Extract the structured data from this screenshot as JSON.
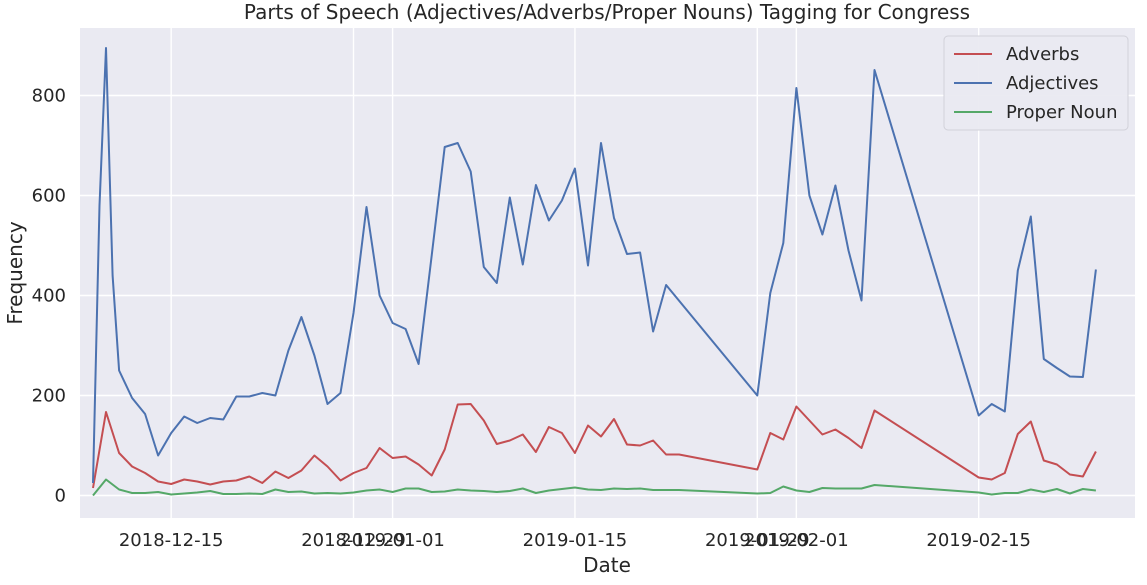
{
  "chart_data": {
    "type": "line",
    "title": "Parts of Speech (Adjectives/Adverbs/Proper Nouns) Tagging for Congress",
    "xlabel": "Date",
    "ylabel": "Frequency",
    "x_is_date": true,
    "xlim": [
      "2018-12-08",
      "2019-02-27"
    ],
    "ylim": [
      -45,
      935
    ],
    "yticks": [
      0,
      200,
      400,
      600,
      800
    ],
    "xticks": [
      {
        "date": "2018-12-15",
        "label": "2018-12-15"
      },
      {
        "date": "2018-12-29",
        "label": "2018-12-29"
      },
      {
        "date": "2019-01-01",
        "label": "2019-01-01"
      },
      {
        "date": "2019-01-15",
        "label": "2019-01-15"
      },
      {
        "date": "2019-01-29",
        "label": "2019-01-29"
      },
      {
        "date": "2019-02-01",
        "label": "2019-02-01"
      },
      {
        "date": "2019-02-15",
        "label": "2019-02-15"
      }
    ],
    "grid": true,
    "legend_position": "top-right",
    "x": [
      "2018-12-11",
      "2018-12-12",
      "2018-12-13",
      "2018-12-14",
      "2018-12-15",
      "2018-12-16",
      "2018-12-17",
      "2018-12-18",
      "2018-12-19",
      "2018-12-20",
      "2018-12-21",
      "2018-12-22",
      "2018-12-23",
      "2018-12-24",
      "2018-12-25",
      "2018-12-26",
      "2018-12-27",
      "2018-12-28",
      "2018-12-29",
      "2018-12-30",
      "2018-12-31",
      "2019-01-01",
      "2019-01-02",
      "2019-01-03",
      "2019-01-04",
      "2019-01-05",
      "2019-01-06",
      "2019-01-07",
      "2019-01-08",
      "2019-01-09",
      "2019-01-10",
      "2019-01-11",
      "2019-01-12",
      "2019-01-13",
      "2019-01-14",
      "2019-01-15",
      "2019-01-16",
      "2019-01-17",
      "2019-01-18",
      "2019-01-19",
      "2019-01-20",
      "2019-01-21",
      "2019-01-22",
      "2019-01-23",
      "2019-01-29",
      "2019-01-30",
      "2019-01-31",
      "2019-02-01",
      "2019-02-02",
      "2019-02-03",
      "2019-02-04",
      "2019-02-05",
      "2019-02-06",
      "2019-02-07",
      "2019-02-08",
      "2019-02-15",
      "2019-02-16",
      "2019-02-17",
      "2019-02-18",
      "2019-02-19",
      "2019-02-20",
      "2019-02-21",
      "2019-02-22",
      "2019-02-23",
      "2019-02-24"
    ],
    "extra_points": {
      "Adjectives": [
        [
          "2018-12-10",
          25
        ],
        [
          "2018-12-10",
          580
        ],
        [
          "2018-12-10",
          895
        ],
        [
          "2018-12-10",
          440
        ],
        [
          "2019-01-26",
          420
        ]
      ],
      "Adverbs": [
        [
          "2018-12-10",
          15
        ],
        [
          "2018-12-10",
          167
        ],
        [
          "2018-12-10",
          85
        ],
        [
          "2019-01-26",
          82
        ]
      ],
      "Proper Noun": [
        [
          "2018-12-10",
          0
        ],
        [
          "2018-12-10",
          32
        ],
        [
          "2018-12-10",
          12
        ],
        [
          "2019-01-26",
          10
        ]
      ]
    },
    "series": [
      {
        "name": "Adverbs",
        "color": "#c44e52",
        "points": [
          [
            "2018-12-09T00:00",
            15
          ],
          [
            "2018-12-10T00:00",
            167
          ],
          [
            "2018-12-11T00:00",
            85
          ],
          [
            "2018-12-12T00:00",
            58
          ],
          [
            "2018-12-13T00:00",
            45
          ],
          [
            "2018-12-14T00:00",
            28
          ],
          [
            "2018-12-15T00:00",
            23
          ],
          [
            "2018-12-16T00:00",
            32
          ],
          [
            "2018-12-17T00:00",
            28
          ],
          [
            "2018-12-18T00:00",
            22
          ],
          [
            "2018-12-19T00:00",
            28
          ],
          [
            "2018-12-20T00:00",
            30
          ],
          [
            "2018-12-21T00:00",
            38
          ],
          [
            "2018-12-22T00:00",
            25
          ],
          [
            "2018-12-23T00:00",
            48
          ],
          [
            "2018-12-24T00:00",
            35
          ],
          [
            "2018-12-25T00:00",
            50
          ],
          [
            "2018-12-26T00:00",
            80
          ],
          [
            "2018-12-27T00:00",
            58
          ],
          [
            "2018-12-28T00:00",
            30
          ],
          [
            "2018-12-29T00:00",
            45
          ],
          [
            "2018-12-30T00:00",
            55
          ],
          [
            "2018-12-31T00:00",
            95
          ],
          [
            "2019-01-01T00:00",
            75
          ],
          [
            "2019-01-02T00:00",
            78
          ],
          [
            "2019-01-03T00:00",
            62
          ],
          [
            "2019-01-04T00:00",
            40
          ],
          [
            "2019-01-05T00:00",
            92
          ],
          [
            "2019-01-06T00:00",
            182
          ],
          [
            "2019-01-07T00:00",
            183
          ],
          [
            "2019-01-08T00:00",
            150
          ],
          [
            "2019-01-09T00:00",
            103
          ],
          [
            "2019-01-10T00:00",
            110
          ],
          [
            "2019-01-11T00:00",
            122
          ],
          [
            "2019-01-12T00:00",
            87
          ],
          [
            "2019-01-13T00:00",
            137
          ],
          [
            "2019-01-14T00:00",
            125
          ],
          [
            "2019-01-15T00:00",
            85
          ],
          [
            "2019-01-16T00:00",
            140
          ],
          [
            "2019-01-17T00:00",
            118
          ],
          [
            "2019-01-18T00:00",
            153
          ],
          [
            "2019-01-19T00:00",
            102
          ],
          [
            "2019-01-20T00:00",
            100
          ],
          [
            "2019-01-21T00:00",
            110
          ],
          [
            "2019-01-22T00:00",
            82
          ],
          [
            "2019-01-23T00:00",
            82
          ],
          [
            "2019-01-29T00:00",
            52
          ],
          [
            "2019-01-30T00:00",
            125
          ],
          [
            "2019-01-31T00:00",
            112
          ],
          [
            "2019-02-01T00:00",
            178
          ],
          [
            "2019-02-02T00:00",
            150
          ],
          [
            "2019-02-03T00:00",
            122
          ],
          [
            "2019-02-04T00:00",
            132
          ],
          [
            "2019-02-05T00:00",
            115
          ],
          [
            "2019-02-06T00:00",
            95
          ],
          [
            "2019-02-07T00:00",
            170
          ],
          [
            "2019-02-15T00:00",
            36
          ],
          [
            "2019-02-16T00:00",
            32
          ],
          [
            "2019-02-17T00:00",
            45
          ],
          [
            "2019-02-18T00:00",
            123
          ],
          [
            "2019-02-19T00:00",
            148
          ],
          [
            "2019-02-20T00:00",
            70
          ],
          [
            "2019-02-21T00:00",
            62
          ],
          [
            "2019-02-22T00:00",
            42
          ],
          [
            "2019-02-23T00:00",
            38
          ],
          [
            "2019-02-24T00:00",
            88
          ]
        ]
      },
      {
        "name": "Adjectives",
        "color": "#4c72b0",
        "points": [
          [
            "2018-12-09T00:00",
            25
          ],
          [
            "2018-12-09T12:00",
            580
          ],
          [
            "2018-12-10T00:00",
            895
          ],
          [
            "2018-12-10T12:00",
            440
          ],
          [
            "2018-12-11T00:00",
            250
          ],
          [
            "2018-12-12T00:00",
            195
          ],
          [
            "2018-12-13T00:00",
            163
          ],
          [
            "2018-12-14T00:00",
            80
          ],
          [
            "2018-12-15T00:00",
            125
          ],
          [
            "2018-12-16T00:00",
            158
          ],
          [
            "2018-12-17T00:00",
            145
          ],
          [
            "2018-12-18T00:00",
            155
          ],
          [
            "2018-12-19T00:00",
            152
          ],
          [
            "2018-12-20T00:00",
            198
          ],
          [
            "2018-12-21T00:00",
            198
          ],
          [
            "2018-12-22T00:00",
            205
          ],
          [
            "2018-12-23T00:00",
            200
          ],
          [
            "2018-12-24T00:00",
            290
          ],
          [
            "2018-12-25T00:00",
            357
          ],
          [
            "2018-12-26T00:00",
            280
          ],
          [
            "2018-12-27T00:00",
            183
          ],
          [
            "2018-12-28T00:00",
            205
          ],
          [
            "2018-12-29T00:00",
            365
          ],
          [
            "2018-12-30T00:00",
            577
          ],
          [
            "2018-12-31T00:00",
            400
          ],
          [
            "2019-01-01T00:00",
            345
          ],
          [
            "2019-01-02T00:00",
            333
          ],
          [
            "2019-01-03T00:00",
            263
          ],
          [
            "2019-01-04T00:00",
            480
          ],
          [
            "2019-01-05T00:00",
            697
          ],
          [
            "2019-01-06T00:00",
            705
          ],
          [
            "2019-01-07T00:00",
            648
          ],
          [
            "2019-01-08T00:00",
            457
          ],
          [
            "2019-01-09T00:00",
            425
          ],
          [
            "2019-01-10T00:00",
            596
          ],
          [
            "2019-01-11T00:00",
            462
          ],
          [
            "2019-01-12T00:00",
            621
          ],
          [
            "2019-01-13T00:00",
            550
          ],
          [
            "2019-01-14T00:00",
            590
          ],
          [
            "2019-01-15T00:00",
            654
          ],
          [
            "2019-01-16T00:00",
            460
          ],
          [
            "2019-01-17T00:00",
            705
          ],
          [
            "2019-01-18T00:00",
            555
          ],
          [
            "2019-01-19T00:00",
            483
          ],
          [
            "2019-01-20T00:00",
            486
          ],
          [
            "2019-01-21T00:00",
            328
          ],
          [
            "2019-01-22T00:00",
            421
          ],
          [
            "2019-01-29T00:00",
            200
          ],
          [
            "2019-01-30T00:00",
            405
          ],
          [
            "2019-01-31T00:00",
            505
          ],
          [
            "2019-02-01T00:00",
            815
          ],
          [
            "2019-02-02T00:00",
            600
          ],
          [
            "2019-02-03T00:00",
            522
          ],
          [
            "2019-02-04T00:00",
            620
          ],
          [
            "2019-02-05T00:00",
            490
          ],
          [
            "2019-02-06T00:00",
            390
          ],
          [
            "2019-02-07T00:00",
            851
          ],
          [
            "2019-02-15T00:00",
            160
          ],
          [
            "2019-02-16T00:00",
            183
          ],
          [
            "2019-02-17T00:00",
            168
          ],
          [
            "2019-02-18T00:00",
            450
          ],
          [
            "2019-02-19T00:00",
            558
          ],
          [
            "2019-02-20T00:00",
            273
          ],
          [
            "2019-02-21T00:00",
            255
          ],
          [
            "2019-02-22T00:00",
            238
          ],
          [
            "2019-02-23T00:00",
            237
          ],
          [
            "2019-02-24T00:00",
            452
          ]
        ]
      },
      {
        "name": "Proper Noun",
        "color": "#55a868",
        "points": [
          [
            "2018-12-09T00:00",
            0
          ],
          [
            "2018-12-10T00:00",
            32
          ],
          [
            "2018-12-11T00:00",
            12
          ],
          [
            "2018-12-12T00:00",
            5
          ],
          [
            "2018-12-13T00:00",
            5
          ],
          [
            "2018-12-14T00:00",
            7
          ],
          [
            "2018-12-15T00:00",
            2
          ],
          [
            "2018-12-16T00:00",
            4
          ],
          [
            "2018-12-17T00:00",
            6
          ],
          [
            "2018-12-18T00:00",
            9
          ],
          [
            "2018-12-19T00:00",
            3
          ],
          [
            "2018-12-20T00:00",
            3
          ],
          [
            "2018-12-21T00:00",
            4
          ],
          [
            "2018-12-22T00:00",
            3
          ],
          [
            "2018-12-23T00:00",
            12
          ],
          [
            "2018-12-24T00:00",
            7
          ],
          [
            "2018-12-25T00:00",
            8
          ],
          [
            "2018-12-26T00:00",
            4
          ],
          [
            "2018-12-27T00:00",
            5
          ],
          [
            "2018-12-28T00:00",
            4
          ],
          [
            "2018-12-29T00:00",
            6
          ],
          [
            "2018-12-30T00:00",
            10
          ],
          [
            "2018-12-31T00:00",
            12
          ],
          [
            "2019-01-01T00:00",
            7
          ],
          [
            "2019-01-02T00:00",
            14
          ],
          [
            "2019-01-03T00:00",
            14
          ],
          [
            "2019-01-04T00:00",
            7
          ],
          [
            "2019-01-05T00:00",
            8
          ],
          [
            "2019-01-06T00:00",
            12
          ],
          [
            "2019-01-07T00:00",
            10
          ],
          [
            "2019-01-08T00:00",
            9
          ],
          [
            "2019-01-09T00:00",
            7
          ],
          [
            "2019-01-10T00:00",
            9
          ],
          [
            "2019-01-11T00:00",
            14
          ],
          [
            "2019-01-12T00:00",
            5
          ],
          [
            "2019-01-13T00:00",
            10
          ],
          [
            "2019-01-14T00:00",
            13
          ],
          [
            "2019-01-15T00:00",
            16
          ],
          [
            "2019-01-16T00:00",
            12
          ],
          [
            "2019-01-17T00:00",
            11
          ],
          [
            "2019-01-18T00:00",
            14
          ],
          [
            "2019-01-19T00:00",
            13
          ],
          [
            "2019-01-20T00:00",
            14
          ],
          [
            "2019-01-21T00:00",
            11
          ],
          [
            "2019-01-22T00:00",
            11
          ],
          [
            "2019-01-23T00:00",
            11
          ],
          [
            "2019-01-29T00:00",
            4
          ],
          [
            "2019-01-30T00:00",
            5
          ],
          [
            "2019-01-31T00:00",
            18
          ],
          [
            "2019-02-01T00:00",
            10
          ],
          [
            "2019-02-02T00:00",
            7
          ],
          [
            "2019-02-03T00:00",
            15
          ],
          [
            "2019-02-04T00:00",
            14
          ],
          [
            "2019-02-05T00:00",
            14
          ],
          [
            "2019-02-06T00:00",
            14
          ],
          [
            "2019-02-07T00:00",
            21
          ],
          [
            "2019-02-15T00:00",
            6
          ],
          [
            "2019-02-16T00:00",
            2
          ],
          [
            "2019-02-17T00:00",
            5
          ],
          [
            "2019-02-18T00:00",
            5
          ],
          [
            "2019-02-19T00:00",
            12
          ],
          [
            "2019-02-20T00:00",
            7
          ],
          [
            "2019-02-21T00:00",
            13
          ],
          [
            "2019-02-22T00:00",
            4
          ],
          [
            "2019-02-23T00:00",
            13
          ],
          [
            "2019-02-24T00:00",
            10
          ]
        ]
      }
    ]
  }
}
